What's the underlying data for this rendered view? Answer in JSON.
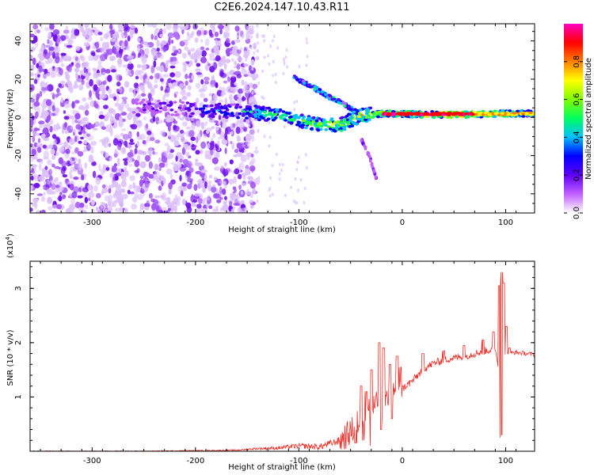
{
  "title": "C2E6.2024.147.10.43.R11",
  "chart_data": [
    {
      "type": "heatmap",
      "xlabel": "Height of straight line (km)",
      "ylabel": "Frequency (Hz)",
      "xlim": [
        -360,
        128
      ],
      "ylim": [
        -50,
        49
      ],
      "x_ticks": [
        -300,
        -200,
        -100,
        0,
        100
      ],
      "x_tick_labels": [
        "-300",
        "-200",
        "-100",
        "0",
        "100"
      ],
      "y_ticks": [
        -40,
        -20,
        0,
        20,
        40
      ],
      "y_tick_labels": [
        "-40",
        "-20",
        "0",
        "20",
        "40"
      ],
      "colorbar": {
        "label": "Normalized spectral amplitude",
        "range": [
          0,
          1
        ],
        "ticks": [
          0.0,
          0.2,
          0.4,
          0.6,
          0.8
        ],
        "tick_labels": [
          "0.0",
          "0.2",
          "0.4",
          "0.6",
          "0.8"
        ],
        "colors": [
          "#ffffff",
          "#c060ff",
          "#6000ff",
          "#0000ff",
          "#00c0ff",
          "#00ff60",
          "#80ff00",
          "#ffff00",
          "#ff8000",
          "#ff0000",
          "#ff00c0"
        ]
      },
      "features": [
        {
          "name": "noise background",
          "x_range": [
            -360,
            -160
          ],
          "f_range": [
            -50,
            49
          ],
          "amplitude": 0.1
        },
        {
          "name": "main streak",
          "points": [
            [
              -260,
              6
            ],
            [
              -200,
              4
            ],
            [
              -150,
              3
            ],
            [
              -120,
              1
            ],
            [
              -90,
              -3
            ],
            [
              -60,
              -4
            ],
            [
              -40,
              1
            ],
            [
              -20,
              2
            ],
            [
              0,
              2
            ],
            [
              20,
              1.5
            ],
            [
              60,
              1.5
            ],
            [
              100,
              2
            ],
            [
              128,
              2
            ]
          ],
          "amplitude": [
            0.15,
            0.3,
            0.45,
            0.55,
            0.6,
            0.65,
            0.7,
            0.75,
            0.8,
            0.85,
            0.9,
            0.75,
            0.6
          ]
        },
        {
          "name": "upper branch",
          "points": [
            [
              -105,
              21
            ],
            [
              -90,
              17
            ],
            [
              -75,
              12
            ],
            [
              -60,
              8
            ],
            [
              -45,
              3
            ]
          ],
          "amplitude": 0.35
        },
        {
          "name": "lower branch",
          "points": [
            [
              -40,
              -11
            ],
            [
              -32,
              -20
            ],
            [
              -25,
              -32
            ]
          ],
          "amplitude": 0.12
        }
      ]
    },
    {
      "type": "line",
      "xlabel": "Height of straight line (km)",
      "ylabel": "SNR (10 * v/v)",
      "y_multiplier": "(x10",
      "y_multiplier_exp": "4",
      "xlim": [
        -360,
        128
      ],
      "ylim": [
        0,
        3.5
      ],
      "x_ticks": [
        -300,
        -200,
        -100,
        0,
        100
      ],
      "x_tick_labels": [
        "-300",
        "-200",
        "-100",
        "0",
        "100"
      ],
      "y_ticks": [
        1,
        2,
        3
      ],
      "y_tick_labels": [
        "1",
        "2",
        "3"
      ],
      "series": [
        {
          "color": "#e8302a",
          "x": [
            -360,
            -300,
            -250,
            -200,
            -160,
            -140,
            -120,
            -100,
            -80,
            -60,
            -50,
            -40,
            -30,
            -20,
            -10,
            0,
            10,
            20,
            30,
            40,
            50,
            60,
            70,
            80,
            90,
            95,
            100,
            110,
            120,
            128
          ],
          "values": [
            0.0,
            0.0,
            0.0,
            0.01,
            0.02,
            0.05,
            0.06,
            0.1,
            0.08,
            0.2,
            0.35,
            0.6,
            0.8,
            0.9,
            1.0,
            1.15,
            1.3,
            1.5,
            1.62,
            1.68,
            1.72,
            1.75,
            1.8,
            1.85,
            1.88,
            1.3,
            1.8,
            1.82,
            1.8,
            1.78
          ]
        }
      ],
      "spikes": [
        [
          -40,
          1.2
        ],
        [
          -35,
          1.1
        ],
        [
          -30,
          1.5
        ],
        [
          -22,
          2.0
        ],
        [
          -18,
          1.9
        ],
        [
          -12,
          1.6
        ],
        [
          -5,
          1.75
        ],
        [
          -2,
          1.55
        ],
        [
          20,
          1.8
        ],
        [
          40,
          1.85
        ],
        [
          60,
          1.95
        ],
        [
          78,
          2.05
        ],
        [
          88,
          2.2
        ],
        [
          94,
          3.05
        ],
        [
          96,
          3.3
        ],
        [
          98,
          3.1
        ],
        [
          101,
          2.3
        ],
        [
          104,
          1.9
        ]
      ],
      "dips": [
        [
          -45,
          0.15
        ],
        [
          -38,
          0.2
        ],
        [
          -30,
          0.1
        ],
        [
          -20,
          0.4
        ],
        [
          -10,
          0.6
        ],
        [
          95,
          0.25
        ],
        [
          96.5,
          0.3
        ]
      ]
    }
  ]
}
